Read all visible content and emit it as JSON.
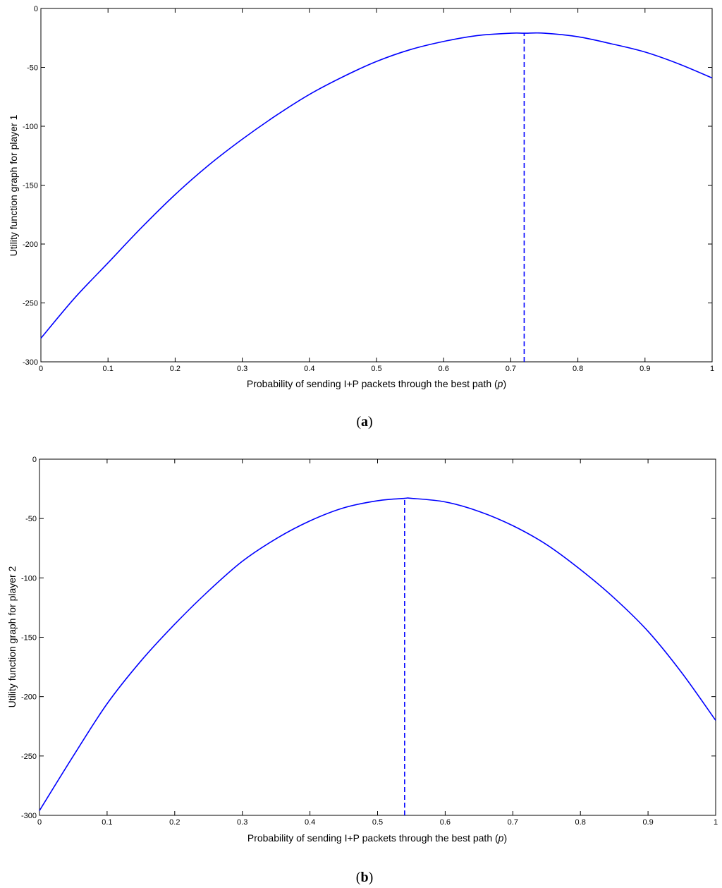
{
  "chart_data": [
    {
      "type": "line",
      "xlabel": "Probability of sending I+P packets through the best path (p)",
      "xlabel_parts": [
        "Probability of sending I+P packets through the best path (",
        "p",
        ")"
      ],
      "ylabel": "Utility function graph for player 1",
      "xlim": [
        0,
        1
      ],
      "ylim": [
        -300,
        0
      ],
      "xticks": [
        "0",
        "0.1",
        "0.2",
        "0.3",
        "0.4",
        "0.5",
        "0.6",
        "0.7",
        "0.8",
        "0.9",
        "1"
      ],
      "yticks": [
        "0",
        "-50",
        "-100",
        "-150",
        "-200",
        "-250",
        "-300"
      ],
      "grid": false,
      "line_color": "#0000ff",
      "series": [
        {
          "x": [
            0,
            0.05,
            0.1,
            0.15,
            0.2,
            0.25,
            0.3,
            0.35,
            0.4,
            0.45,
            0.5,
            0.55,
            0.6,
            0.65,
            0.7,
            0.72,
            0.75,
            0.8,
            0.85,
            0.9,
            0.95,
            1
          ],
          "y": [
            -280,
            -246,
            -216,
            -186,
            -158,
            -133,
            -111,
            -91,
            -73,
            -58,
            -45,
            -35,
            -28,
            -23,
            -21,
            -21,
            -21,
            -24,
            -30,
            -37,
            -47,
            -59
          ]
        }
      ],
      "vline": {
        "x": 0.72,
        "y_from": -300,
        "y_to": -21,
        "style": "dashed"
      },
      "panel_label": "a"
    },
    {
      "type": "line",
      "xlabel": "Probability of sending I+P packets through the best path (p)",
      "xlabel_parts": [
        "Probability of sending I+P packets through the best path (",
        "p",
        ")"
      ],
      "ylabel": "Utility function graph for player 2",
      "xlim": [
        0,
        1
      ],
      "ylim": [
        -300,
        0
      ],
      "xticks": [
        "0",
        "0.1",
        "0.2",
        "0.3",
        "0.4",
        "0.5",
        "0.6",
        "0.7",
        "0.8",
        "0.9",
        "1"
      ],
      "yticks": [
        "0",
        "-50",
        "-100",
        "-150",
        "-200",
        "-250",
        "-300"
      ],
      "grid": false,
      "line_color": "#0000ff",
      "series": [
        {
          "x": [
            0,
            0.05,
            0.1,
            0.15,
            0.2,
            0.25,
            0.3,
            0.35,
            0.4,
            0.45,
            0.5,
            0.54,
            0.55,
            0.6,
            0.65,
            0.7,
            0.75,
            0.8,
            0.85,
            0.9,
            0.95,
            1
          ],
          "y": [
            -296,
            -250,
            -206,
            -170,
            -139,
            -111,
            -86,
            -67,
            -52,
            -41,
            -35,
            -33,
            -33,
            -36,
            -44,
            -56,
            -72,
            -93,
            -117,
            -145,
            -180,
            -220
          ]
        }
      ],
      "vline": {
        "x": 0.54,
        "y_from": -300,
        "y_to": -33,
        "style": "dashed"
      },
      "panel_label": "b"
    }
  ],
  "panels": [
    {
      "label_open": "(",
      "label": "a",
      "label_close": ")"
    },
    {
      "label_open": "(",
      "label": "b",
      "label_close": ")"
    }
  ]
}
